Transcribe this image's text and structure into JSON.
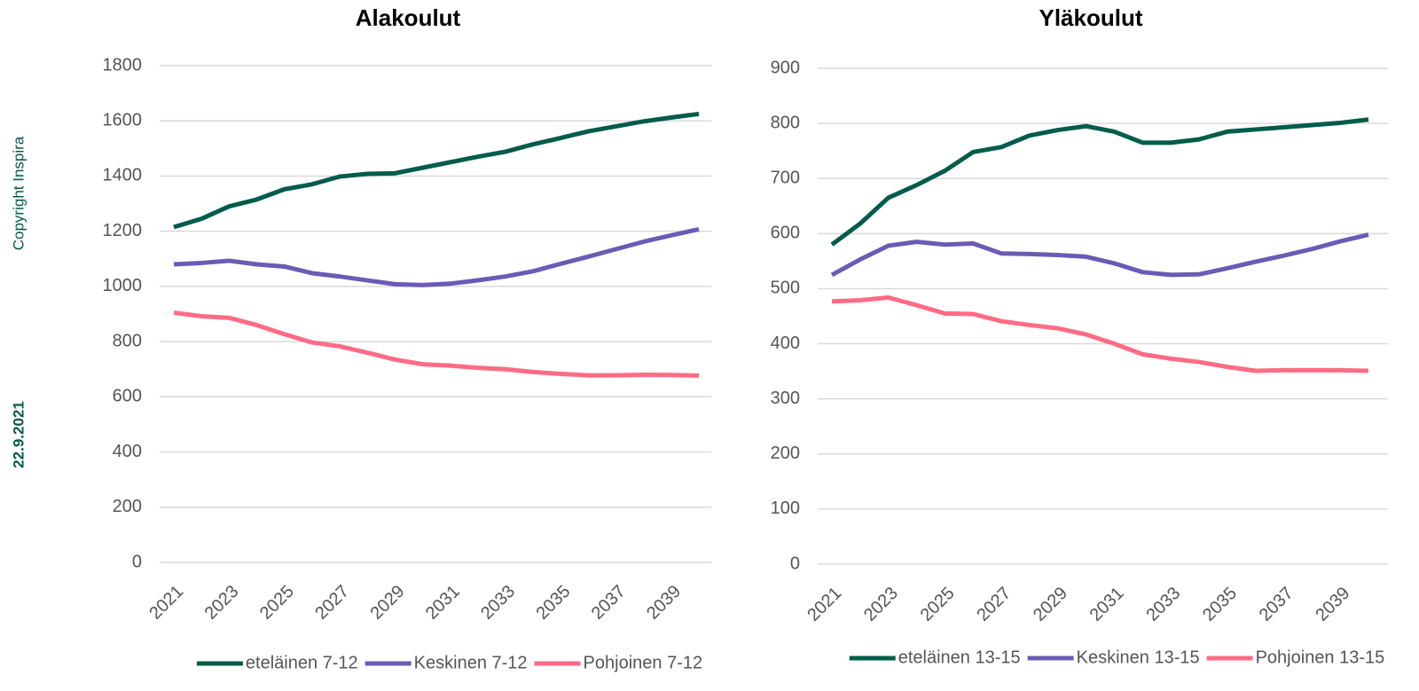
{
  "copyright": "Copyright Inspira",
  "date": "22.9.2021",
  "chart_data": [
    {
      "type": "line",
      "title": "Alakoulut",
      "categories": [
        "2021",
        null,
        "2023",
        null,
        "2025",
        null,
        "2027",
        null,
        "2029",
        null,
        "2031",
        null,
        "2033",
        null,
        "2035",
        null,
        "2037",
        null,
        "2039",
        null
      ],
      "ylim": [
        0,
        1800
      ],
      "yticks": [
        0,
        200,
        400,
        600,
        800,
        1000,
        1200,
        1400,
        1600,
        1800
      ],
      "grid": true,
      "legend": "bottom",
      "series": [
        {
          "name": "eteläinen 7-12",
          "color": "#005c4b",
          "values": [
            1215,
            1245,
            1290,
            1315,
            1352,
            1370,
            1398,
            1408,
            1410,
            1430,
            1450,
            1470,
            1488,
            1515,
            1538,
            1562,
            1580,
            1598,
            1612,
            1625
          ]
        },
        {
          "name": "Keskinen 7-12",
          "color": "#6b5bb5",
          "values": [
            1080,
            1085,
            1093,
            1080,
            1072,
            1048,
            1036,
            1022,
            1008,
            1005,
            1010,
            1022,
            1036,
            1055,
            1082,
            1108,
            1135,
            1162,
            1185,
            1207
          ]
        },
        {
          "name": "Pohjoinen 7-12",
          "color": "#ff6b85",
          "values": [
            905,
            892,
            886,
            860,
            827,
            797,
            783,
            760,
            735,
            718,
            713,
            705,
            700,
            690,
            683,
            678,
            678,
            680,
            679,
            677
          ]
        }
      ]
    },
    {
      "type": "line",
      "title": "Yläkoulut",
      "categories": [
        "2021",
        null,
        "2023",
        null,
        "2025",
        null,
        "2027",
        null,
        "2029",
        null,
        "2031",
        null,
        "2033",
        null,
        "2035",
        null,
        "2037",
        null,
        "2039",
        null
      ],
      "ylim": [
        0,
        900
      ],
      "yticks": [
        0,
        100,
        200,
        300,
        400,
        500,
        600,
        700,
        800,
        900
      ],
      "grid": true,
      "legend": "bottom",
      "series": [
        {
          "name": "eteläinen 13-15",
          "color": "#005c4b",
          "values": [
            580,
            618,
            665,
            688,
            714,
            748,
            757,
            778,
            788,
            795,
            785,
            765,
            765,
            771,
            785,
            789,
            793,
            797,
            801,
            807
          ]
        },
        {
          "name": "Keskinen 13-15",
          "color": "#6b5bb5",
          "values": [
            525,
            553,
            578,
            585,
            580,
            582,
            564,
            563,
            561,
            558,
            546,
            530,
            525,
            526,
            537,
            549,
            560,
            572,
            586,
            598
          ]
        },
        {
          "name": "Pohjoinen 13-15",
          "color": "#ff6b85",
          "values": [
            477,
            479,
            484,
            470,
            455,
            454,
            441,
            434,
            428,
            417,
            400,
            381,
            373,
            367,
            358,
            351,
            352,
            352,
            352,
            351
          ]
        }
      ]
    }
  ]
}
